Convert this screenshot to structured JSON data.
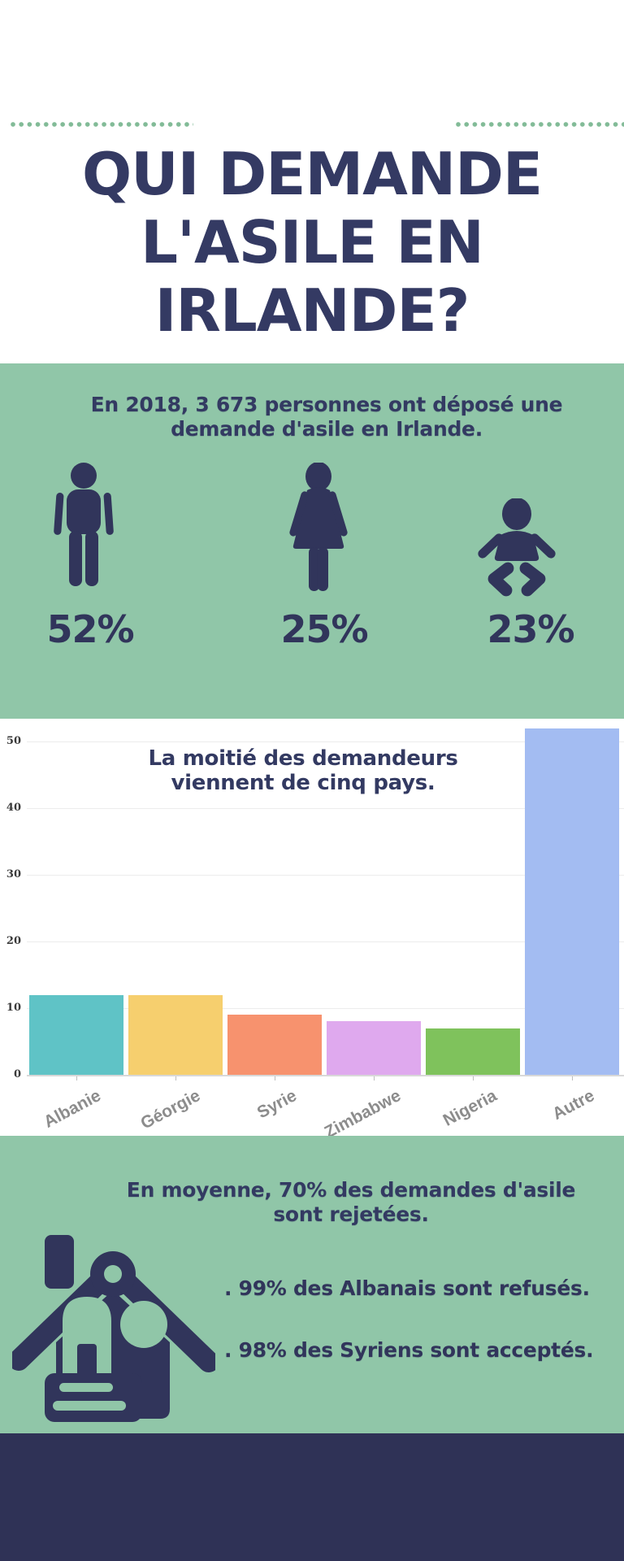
{
  "title": {
    "line1": "QUI DEMANDE",
    "line2": "L'ASILE EN",
    "line3": "IRLANDE?"
  },
  "demographics": {
    "heading_line1": "En 2018, 3 673 personnes ont déposé une",
    "heading_line2": "demande d'asile en Irlande.",
    "stats": [
      {
        "icon": "man",
        "label": "52%"
      },
      {
        "icon": "woman",
        "label": "25%"
      },
      {
        "icon": "baby",
        "label": "23%"
      }
    ]
  },
  "chart_data": {
    "type": "bar",
    "title_line1": "La moitié des demandeurs",
    "title_line2": "viennent de cinq pays.",
    "categories": [
      "Albanie",
      "Géorgie",
      "Syrie",
      "Zimbabwe",
      "Nigeria",
      "Autre"
    ],
    "values": [
      12,
      12,
      9,
      8,
      7,
      52
    ],
    "bar_colors": [
      "#5fc3c6",
      "#f6cf6e",
      "#f7926e",
      "#dfa9ee",
      "#7fc25c",
      "#a3bcf2"
    ],
    "y_ticks": [
      0,
      10,
      20,
      30,
      40,
      50
    ],
    "ylim": [
      0,
      53.5
    ],
    "grid": true,
    "legend": false,
    "xlabel": "",
    "ylabel": ""
  },
  "decisions": {
    "heading_line1": "En moyenne, 70% des demandes d'asile",
    "heading_line2": "sont rejetées.",
    "bullets": [
      ". 99% des Albanais sont refusés.",
      ". 98% des Syriens sont acceptés."
    ]
  },
  "colors": {
    "green_bg": "#90c6a8",
    "navy": "#32365c",
    "dot_green": "#82bb97",
    "gridline": "#ececec",
    "y_label": "#3a3a3a",
    "x_label": "#8c8c8c",
    "footer": "#2f3256"
  }
}
